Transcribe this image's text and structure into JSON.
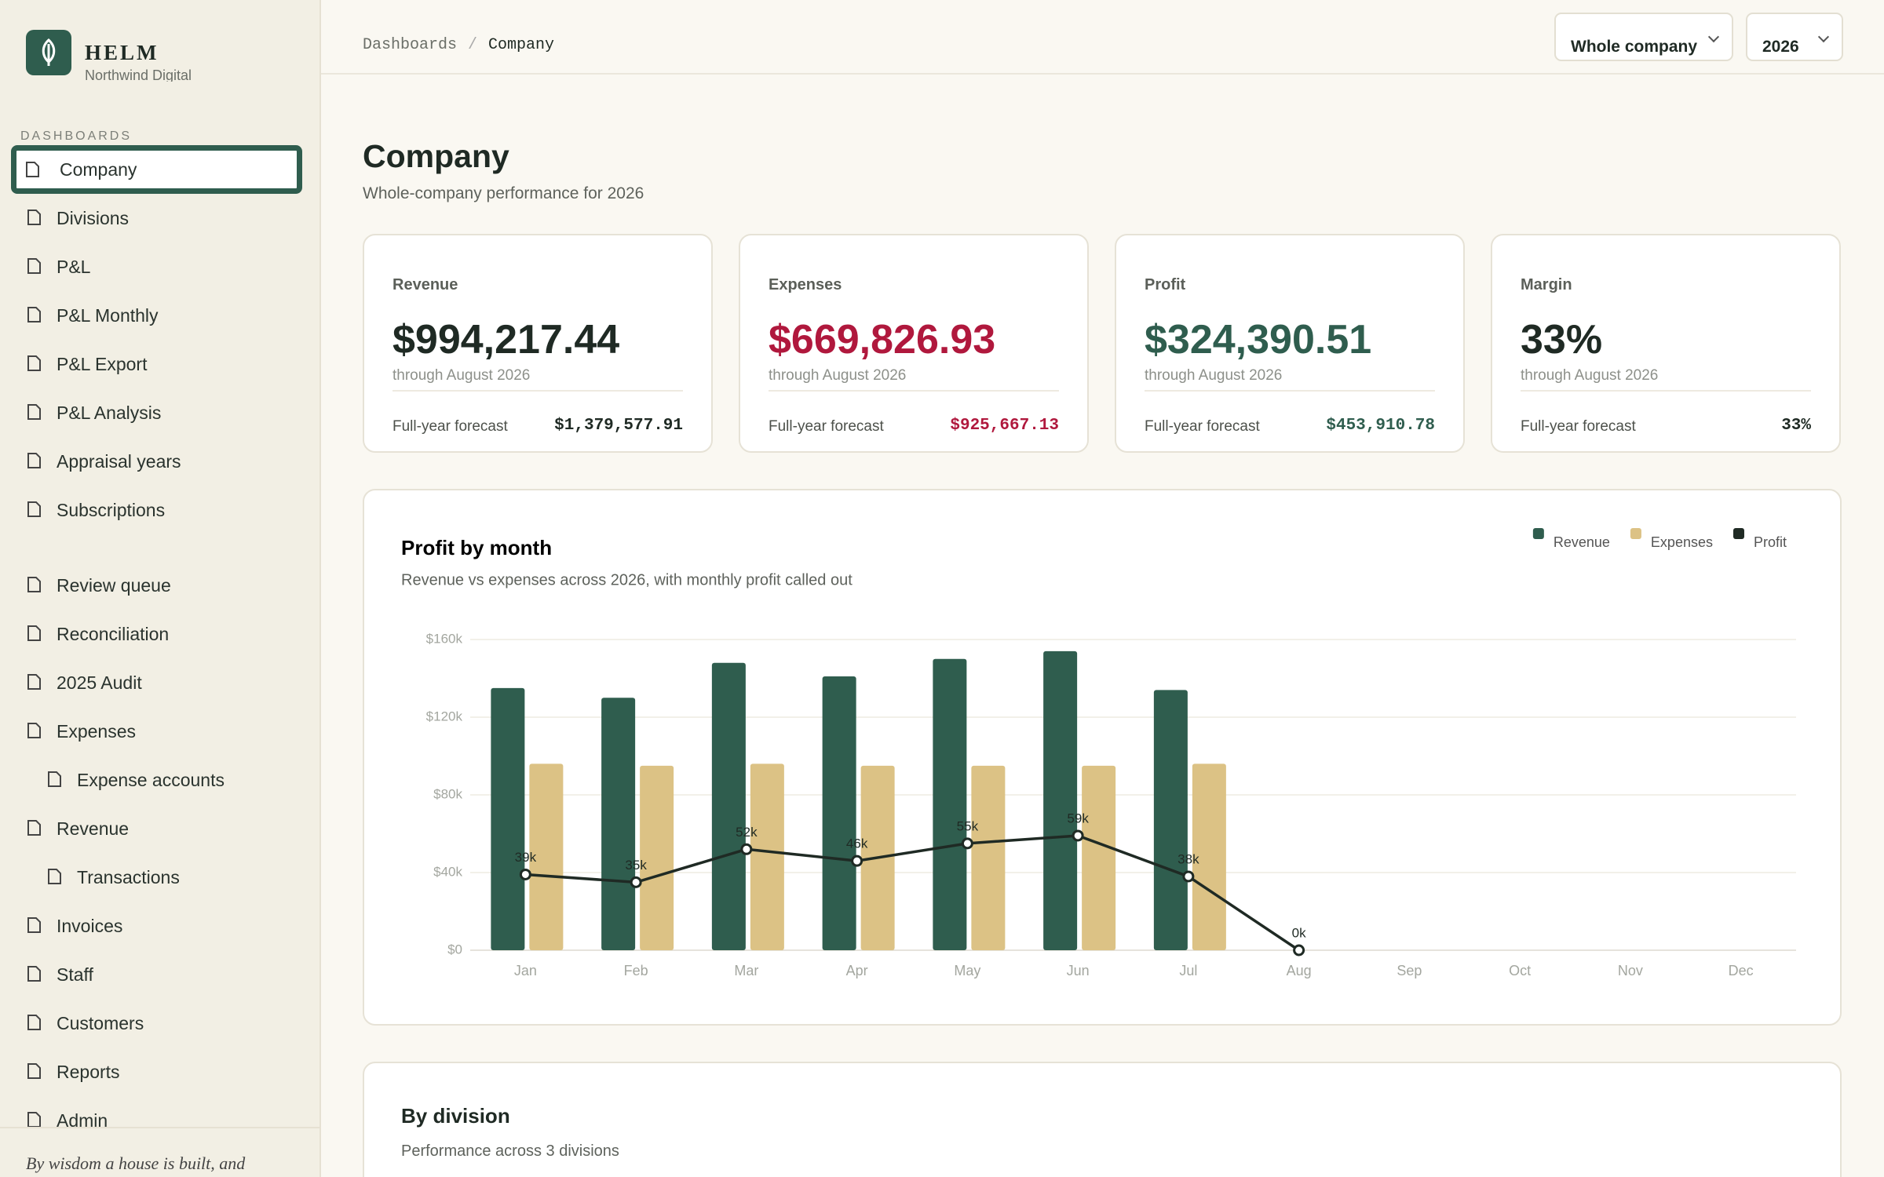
{
  "sidebar": {
    "brand": "HELM",
    "org": "Northwind Digital",
    "section": "DASHBOARDS",
    "groups": [
      [
        {
          "label": "Company",
          "active": true
        },
        {
          "label": "Divisions"
        },
        {
          "label": "P&L"
        },
        {
          "label": "P&L Monthly"
        },
        {
          "label": "P&L Export"
        },
        {
          "label": "P&L Analysis"
        },
        {
          "label": "Appraisal years"
        },
        {
          "label": "Subscriptions"
        }
      ],
      [
        {
          "label": "Review queue"
        },
        {
          "label": "Reconciliation"
        },
        {
          "label": "2025 Audit"
        },
        {
          "label": "Expenses"
        },
        {
          "label": "Expense accounts",
          "indent": true
        },
        {
          "label": "Revenue"
        },
        {
          "label": "Transactions",
          "indent": true
        },
        {
          "label": "Invoices"
        },
        {
          "label": "Staff"
        },
        {
          "label": "Customers"
        },
        {
          "label": "Reports"
        },
        {
          "label": "Admin"
        }
      ]
    ],
    "footer": "By wisdom a house is built, and"
  },
  "header": {
    "breadcrumb": [
      "Dashboards",
      "Company"
    ],
    "separator": "/",
    "filters": [
      "Whole company",
      "2026"
    ]
  },
  "page": {
    "title": "Company",
    "subtitle": "Whole-company performance for 2026"
  },
  "kpis": [
    {
      "label": "Revenue",
      "value": "$994,217.44",
      "note": "through August 2026",
      "forecast_label": "Full-year forecast",
      "forecast": "$1,379,577.91",
      "color": "#1f2a24"
    },
    {
      "label": "Expenses",
      "value": "$669,826.93",
      "note": "through August 2026",
      "forecast_label": "Full-year forecast",
      "forecast": "$925,667.13",
      "color": "#b0183d"
    },
    {
      "label": "Profit",
      "value": "$324,390.51",
      "note": "through August 2026",
      "forecast_label": "Full-year forecast",
      "forecast": "$453,910.78",
      "color": "#2f5d4e"
    },
    {
      "label": "Margin",
      "value": "33%",
      "note": "through August 2026",
      "forecast_label": "Full-year forecast",
      "forecast": "33%",
      "color": "#1f2a24"
    }
  ],
  "chart_data": {
    "type": "bar",
    "title": "Profit by month",
    "subtitle": "Revenue vs expenses across 2026, with monthly profit called out",
    "categories": [
      "Jan",
      "Feb",
      "Mar",
      "Apr",
      "May",
      "Jun",
      "Jul",
      "Aug",
      "Sep",
      "Oct",
      "Nov",
      "Dec"
    ],
    "series": [
      {
        "name": "Revenue",
        "type": "bar",
        "color": "#2f5d4e",
        "values": [
          135000,
          130000,
          148000,
          141000,
          150000,
          154000,
          134000,
          null,
          null,
          null,
          null,
          null
        ]
      },
      {
        "name": "Expenses",
        "type": "bar",
        "color": "#dcc285",
        "values": [
          96000,
          95000,
          96000,
          95000,
          95000,
          95000,
          96000,
          null,
          null,
          null,
          null,
          null
        ]
      },
      {
        "name": "Profit",
        "type": "line",
        "color": "#1f2a24",
        "values": [
          39000,
          35000,
          52000,
          46000,
          55000,
          59000,
          38000,
          0,
          null,
          null,
          null,
          null
        ],
        "value_labels": [
          "39k",
          "35k",
          "52k",
          "46k",
          "55k",
          "59k",
          "38k",
          "0k",
          null,
          null,
          null,
          null
        ]
      }
    ],
    "ylim": [
      0,
      160000
    ],
    "yticks": [
      {
        "value": 0,
        "label": "$0"
      },
      {
        "value": 40000,
        "label": "$40k"
      },
      {
        "value": 80000,
        "label": "$80k"
      },
      {
        "value": 120000,
        "label": "$120k"
      },
      {
        "value": 160000,
        "label": "$160k"
      }
    ],
    "grid": true,
    "legend": "top-right"
  },
  "by_division": {
    "title": "By division",
    "subtitle": "Performance across 3 divisions"
  }
}
